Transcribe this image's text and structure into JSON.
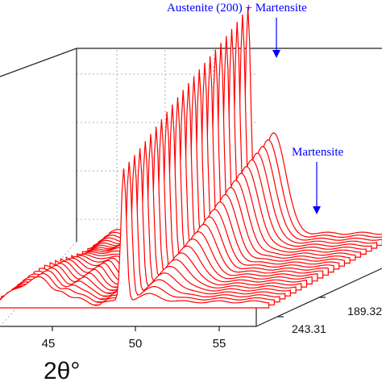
{
  "chart_data": {
    "type": "line",
    "style": "3d-waterfall",
    "title": "",
    "xlabel": "2θ°",
    "ylabel": "",
    "x_ticks": [
      45,
      50,
      55
    ],
    "xlim": [
      41,
      58
    ],
    "depth_ticks": [
      "189.32",
      "243.31"
    ],
    "grid": true,
    "series_color": "#ff0000",
    "trace_count": 24,
    "peaks": [
      {
        "center": 49.3,
        "width": 0.16,
        "intensity_first": 0.55,
        "intensity_last": 0.9
      },
      {
        "center": 50.85,
        "width": 0.7,
        "intensity_first": 0.03,
        "intensity_last": 0.42
      },
      {
        "center": 43.9,
        "width": 0.9,
        "intensity_first": 0.1,
        "intensity_last": 0.02
      },
      {
        "center": 45.6,
        "width": 0.35,
        "intensity_first": 0.04,
        "intensity_last": 0.02
      }
    ],
    "annotations": [
      {
        "text": "Austenite (200) + Martensite",
        "color": "#0000ff"
      },
      {
        "text": "Martensite",
        "color": "#0000ff"
      }
    ]
  },
  "icons": {
    "annotation_arrow": "arrow-down-icon"
  }
}
